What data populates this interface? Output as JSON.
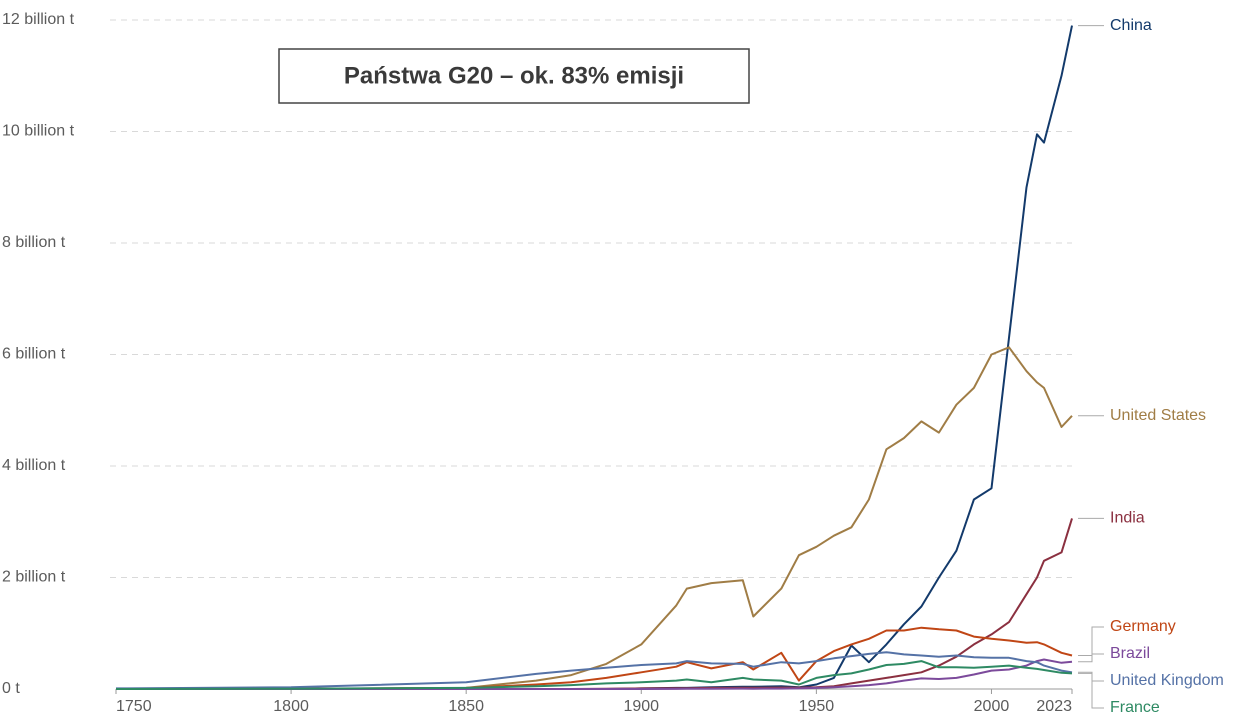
{
  "chart_data": {
    "type": "line",
    "annotation": "Państwa G20 – ok. 83% emisji",
    "x": [
      1750,
      1800,
      1850,
      1870,
      1880,
      1890,
      1900,
      1910,
      1913,
      1920,
      1929,
      1932,
      1940,
      1945,
      1950,
      1955,
      1960,
      1965,
      1970,
      1975,
      1980,
      1985,
      1990,
      1995,
      2000,
      2005,
      2010,
      2013,
      2015,
      2020,
      2023
    ],
    "series": [
      {
        "name": "China",
        "color": "#133a6b",
        "values": [
          0,
          0,
          0,
          0,
          0,
          0,
          0.01,
          0.02,
          0.02,
          0.03,
          0.04,
          0.04,
          0.05,
          0.03,
          0.08,
          0.2,
          0.78,
          0.48,
          0.8,
          1.16,
          1.48,
          2.0,
          2.48,
          3.4,
          3.6,
          6.3,
          9.0,
          9.95,
          9.8,
          11.0,
          11.9
        ]
      },
      {
        "name": "United States",
        "color": "#a07d46",
        "values": [
          0,
          0.001,
          0.02,
          0.15,
          0.25,
          0.45,
          0.8,
          1.5,
          1.8,
          1.9,
          1.95,
          1.3,
          1.8,
          2.4,
          2.55,
          2.75,
          2.9,
          3.4,
          4.3,
          4.5,
          4.8,
          4.6,
          5.1,
          5.4,
          6.0,
          6.13,
          5.7,
          5.5,
          5.4,
          4.7,
          4.9
        ]
      },
      {
        "name": "India",
        "color": "#8b3040",
        "values": [
          0,
          0,
          0,
          0,
          0,
          0.005,
          0.01,
          0.012,
          0.015,
          0.02,
          0.022,
          0.022,
          0.025,
          0.025,
          0.03,
          0.05,
          0.1,
          0.15,
          0.2,
          0.25,
          0.3,
          0.42,
          0.58,
          0.8,
          0.98,
          1.2,
          1.7,
          2.0,
          2.3,
          2.45,
          3.06
        ]
      },
      {
        "name": "Germany",
        "color": "#c04615",
        "values": [
          0,
          0.002,
          0.02,
          0.08,
          0.12,
          0.2,
          0.3,
          0.4,
          0.48,
          0.37,
          0.48,
          0.35,
          0.65,
          0.15,
          0.5,
          0.68,
          0.8,
          0.9,
          1.05,
          1.05,
          1.1,
          1.07,
          1.05,
          0.94,
          0.9,
          0.87,
          0.83,
          0.84,
          0.8,
          0.65,
          0.6
        ]
      },
      {
        "name": "Brazil",
        "color": "#7c4a9b",
        "values": [
          0,
          0,
          0,
          0,
          0,
          0,
          0,
          0.002,
          0.003,
          0.005,
          0.007,
          0.006,
          0.008,
          0.01,
          0.02,
          0.03,
          0.05,
          0.07,
          0.1,
          0.15,
          0.19,
          0.18,
          0.2,
          0.26,
          0.33,
          0.35,
          0.42,
          0.5,
          0.53,
          0.47,
          0.49
        ]
      },
      {
        "name": "United Kingdom",
        "color": "#5572a6",
        "values": [
          0.01,
          0.03,
          0.12,
          0.27,
          0.33,
          0.38,
          0.43,
          0.46,
          0.5,
          0.46,
          0.45,
          0.4,
          0.48,
          0.46,
          0.5,
          0.55,
          0.59,
          0.63,
          0.66,
          0.62,
          0.6,
          0.58,
          0.6,
          0.57,
          0.56,
          0.56,
          0.5,
          0.48,
          0.42,
          0.33,
          0.3
        ]
      },
      {
        "name": "France",
        "color": "#2e8a63",
        "values": [
          0,
          0.005,
          0.02,
          0.05,
          0.07,
          0.1,
          0.12,
          0.15,
          0.17,
          0.12,
          0.2,
          0.17,
          0.15,
          0.08,
          0.2,
          0.25,
          0.28,
          0.35,
          0.43,
          0.45,
          0.5,
          0.39,
          0.39,
          0.38,
          0.4,
          0.42,
          0.38,
          0.36,
          0.34,
          0.29,
          0.28
        ]
      }
    ],
    "xlim": [
      1750,
      2023
    ],
    "xticks": [
      1750,
      1800,
      1850,
      1900,
      1950,
      2000,
      2023
    ],
    "ylim": [
      0,
      12
    ],
    "yticks": [
      {
        "value": 0,
        "label": "0 t"
      },
      {
        "value": 2,
        "label": "2 billion t"
      },
      {
        "value": 4,
        "label": "4 billion t"
      },
      {
        "value": 6,
        "label": "6 billion t"
      },
      {
        "value": 8,
        "label": "8 billion t"
      },
      {
        "value": 10,
        "label": "10 billion t"
      },
      {
        "value": 12,
        "label": "12 billion t"
      }
    ],
    "grid": true
  }
}
